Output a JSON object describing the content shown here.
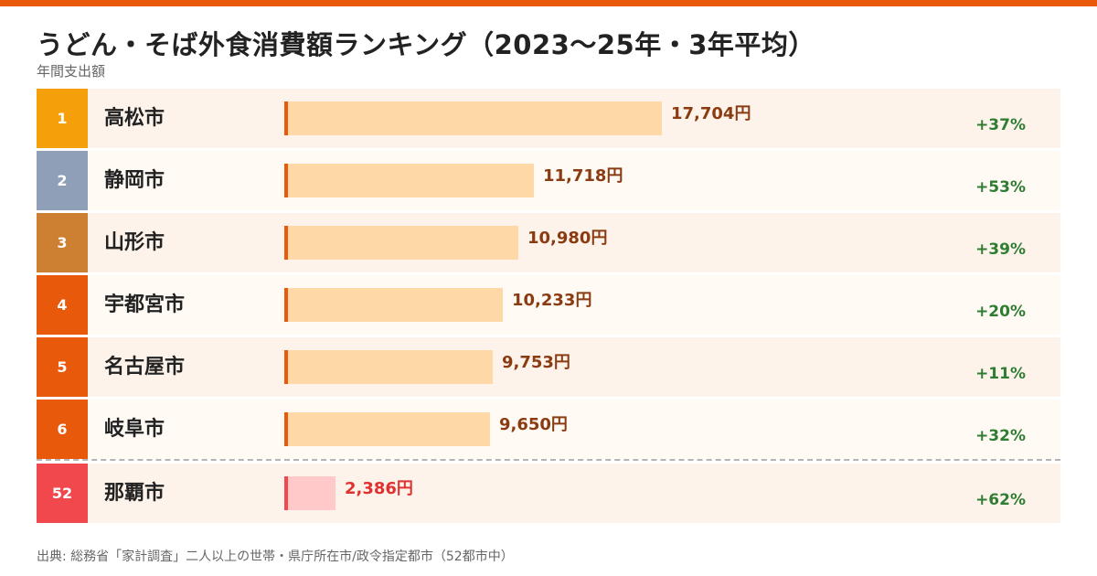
{
  "title": "うどん・そば外食消費額ランキング（2023〜25年・3年平均）",
  "subtitle": "年間支出額",
  "source": "出典: 総務省「家計調査」二人以上の世帯・県庁所在市/政令指定都市（52都市中）",
  "colors": {
    "accent": "#e8590c",
    "gold": "#f59f0a",
    "silver": "#8f9fb7",
    "bronze": "#cd7f32",
    "rank_default": "#e8590c",
    "rank_highlight": "#f0484c",
    "bar_normal": "#ffd8a8",
    "bar_highlight": "#ffc9c9",
    "value_normal": "#8a3b12",
    "value_highlight": "#e03131",
    "change_positive": "#2e7d32"
  },
  "chart_data": {
    "type": "bar",
    "title": "うどん・そば外食消費額ランキング（2023〜25年・3年平均）",
    "subtitle": "年間支出額",
    "unit": "円",
    "xlim": [
      0,
      24000
    ],
    "rows": [
      {
        "rank": "1",
        "city": "高松市",
        "value": 17704,
        "value_label": "17,704円",
        "change": "+37%",
        "highlight": false
      },
      {
        "rank": "2",
        "city": "静岡市",
        "value": 11718,
        "value_label": "11,718円",
        "change": "+53%",
        "highlight": false
      },
      {
        "rank": "3",
        "city": "山形市",
        "value": 10980,
        "value_label": "10,980円",
        "change": "+39%",
        "highlight": false
      },
      {
        "rank": "4",
        "city": "宇都宮市",
        "value": 10233,
        "value_label": "10,233円",
        "change": "+20%",
        "highlight": false
      },
      {
        "rank": "5",
        "city": "名古屋市",
        "value": 9753,
        "value_label": "9,753円",
        "change": "+11%",
        "highlight": false
      },
      {
        "rank": "6",
        "city": "岐阜市",
        "value": 9650,
        "value_label": "9,650円",
        "change": "+32%",
        "highlight": false
      },
      {
        "rank": "52",
        "city": "那覇市",
        "value": 2386,
        "value_label": "2,386円",
        "change": "+62%",
        "highlight": true
      }
    ]
  }
}
